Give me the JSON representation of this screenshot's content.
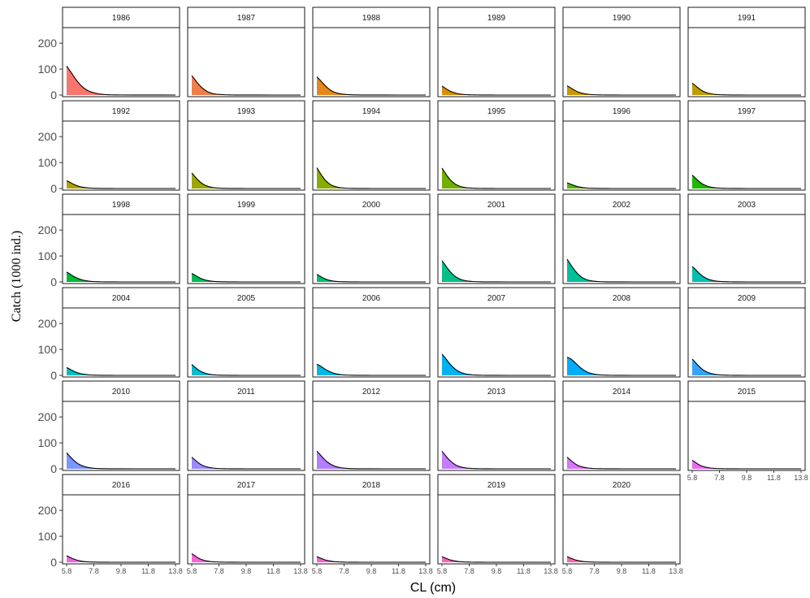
{
  "chart_data": {
    "type": "area",
    "layout": "facet-grid 6 columns, free x labels on bottom row of each column",
    "xlabel": "CL (cm)",
    "ylabel": "Catch (1000 ind.)",
    "xlim": [
      5.8,
      13.8
    ],
    "ylim": [
      0,
      260
    ],
    "x_ticks": [
      "5.8",
      "7.8",
      "9.8",
      "11.8",
      "13.8"
    ],
    "y_ticks": [
      "0",
      "100",
      "200"
    ],
    "grid": false,
    "legend": "none",
    "x": [
      5.8,
      6.0,
      6.2,
      6.4,
      6.6,
      6.8,
      7.0,
      7.2,
      7.4,
      7.6,
      7.8,
      8.0,
      8.2,
      8.4,
      8.6,
      8.8,
      9.0,
      9.4,
      9.8,
      10.8,
      11.8,
      12.8,
      13.8
    ],
    "series": [
      {
        "name": "1986",
        "color": "#F8766D",
        "values": [
          112,
          97,
          82,
          66,
          52,
          40,
          30,
          22,
          16,
          12,
          9,
          6,
          4,
          3,
          2,
          1.5,
          1,
          0.6,
          0.4,
          0.2,
          0.1,
          0.1,
          0
        ]
      },
      {
        "name": "1987",
        "color": "#F07E4A",
        "values": [
          75,
          62,
          48,
          36,
          26,
          18,
          12,
          8,
          5,
          3.5,
          2.5,
          1.8,
          1.2,
          0.8,
          0.6,
          0.4,
          0.3,
          0.2,
          0.1,
          0.1,
          0,
          0,
          0
        ]
      },
      {
        "name": "1988",
        "color": "#E7861A",
        "values": [
          70,
          60,
          48,
          37,
          27,
          19,
          13,
          9,
          6,
          4,
          3,
          2,
          1.4,
          1,
          0.7,
          0.5,
          0.3,
          0.2,
          0.1,
          0.1,
          0,
          0,
          0
        ]
      },
      {
        "name": "1989",
        "color": "#DB8E00",
        "values": [
          35,
          28,
          21,
          15,
          11,
          7.5,
          5,
          3.4,
          2.3,
          1.6,
          1.1,
          0.8,
          0.5,
          0.4,
          0.3,
          0.2,
          0.1,
          0.1,
          0,
          0,
          0,
          0,
          0
        ]
      },
      {
        "name": "1990",
        "color": "#CE9600",
        "values": [
          36,
          30,
          23,
          17,
          12,
          8.5,
          6,
          4,
          2.7,
          1.8,
          1.2,
          0.8,
          0.6,
          0.4,
          0.3,
          0.2,
          0.1,
          0.1,
          0,
          0,
          0,
          0,
          0
        ]
      },
      {
        "name": "1991",
        "color": "#BF9C00",
        "values": [
          46,
          38,
          29,
          21,
          15,
          10,
          7,
          4.7,
          3.1,
          2.1,
          1.4,
          1,
          0.7,
          0.5,
          0.3,
          0.2,
          0.1,
          0.1,
          0,
          0,
          0,
          0,
          0
        ]
      },
      {
        "name": "1992",
        "color": "#AFA200",
        "values": [
          30,
          25,
          19,
          14,
          10,
          7,
          4.8,
          3.2,
          2.1,
          1.4,
          1,
          0.7,
          0.5,
          0.3,
          0.2,
          0.1,
          0.1,
          0,
          0,
          0,
          0,
          0,
          0
        ]
      },
      {
        "name": "1993",
        "color": "#9CA700",
        "values": [
          60,
          48,
          36,
          26,
          18,
          12,
          8,
          5.3,
          3.5,
          2.3,
          1.5,
          1,
          0.7,
          0.5,
          0.3,
          0.2,
          0.1,
          0.1,
          0,
          0,
          0,
          0,
          0
        ]
      },
      {
        "name": "1994",
        "color": "#88AC00",
        "values": [
          80,
          63,
          47,
          33,
          23,
          15,
          10,
          6.5,
          4.2,
          2.7,
          1.8,
          1.2,
          0.8,
          0.5,
          0.3,
          0.2,
          0.1,
          0.1,
          0,
          0,
          0,
          0,
          0
        ]
      },
      {
        "name": "1995",
        "color": "#70B000",
        "values": [
          79,
          63,
          47,
          34,
          24,
          16,
          11,
          7,
          4.6,
          3,
          2,
          1.3,
          0.9,
          0.6,
          0.4,
          0.3,
          0.2,
          0.1,
          0,
          0,
          0,
          0,
          0
        ]
      },
      {
        "name": "1996",
        "color": "#52B400",
        "values": [
          22,
          18,
          14,
          10,
          7,
          5,
          3.4,
          2.3,
          1.5,
          1,
          0.7,
          0.5,
          0.3,
          0.2,
          0.1,
          0.1,
          0,
          0,
          0,
          0,
          0,
          0,
          0
        ]
      },
      {
        "name": "1997",
        "color": "#1DB700",
        "values": [
          52,
          42,
          32,
          23,
          16,
          11,
          7.4,
          5,
          3.3,
          2.2,
          1.4,
          1,
          0.6,
          0.4,
          0.3,
          0.2,
          0.1,
          0.1,
          0,
          0,
          0,
          0,
          0
        ]
      },
      {
        "name": "1998",
        "color": "#00BA38",
        "values": [
          38,
          32,
          25,
          19,
          14,
          10,
          7,
          4.8,
          3.2,
          2.1,
          1.4,
          1,
          0.6,
          0.4,
          0.3,
          0.2,
          0.1,
          0.1,
          0,
          0,
          0,
          0,
          0
        ]
      },
      {
        "name": "1999",
        "color": "#00BC59",
        "values": [
          33,
          27,
          21,
          15,
          11,
          7.5,
          5,
          3.4,
          2.2,
          1.5,
          1,
          0.7,
          0.5,
          0.3,
          0.2,
          0.1,
          0.1,
          0,
          0,
          0,
          0,
          0,
          0
        ]
      },
      {
        "name": "2000",
        "color": "#00BE71",
        "values": [
          30,
          23,
          17,
          12,
          8,
          5.3,
          3.5,
          2.3,
          1.5,
          1,
          0.7,
          0.5,
          0.3,
          0.2,
          0.1,
          0.1,
          0,
          0,
          0,
          0,
          0,
          0,
          0
        ]
      },
      {
        "name": "2001",
        "color": "#00BF87",
        "values": [
          82,
          68,
          53,
          40,
          29,
          20,
          14,
          9.5,
          6.3,
          4.2,
          2.8,
          1.8,
          1.2,
          0.8,
          0.5,
          0.3,
          0.2,
          0.1,
          0.1,
          0,
          0,
          0,
          0
        ]
      },
      {
        "name": "2002",
        "color": "#00C09B",
        "values": [
          88,
          72,
          56,
          42,
          30,
          21,
          14,
          9.5,
          6.3,
          4.2,
          2.8,
          1.8,
          1.2,
          0.8,
          0.5,
          0.3,
          0.2,
          0.1,
          0.1,
          0,
          0,
          0,
          0
        ]
      },
      {
        "name": "2003",
        "color": "#00C0AF",
        "values": [
          60,
          50,
          39,
          29,
          21,
          15,
          10,
          6.8,
          4.5,
          3,
          2,
          1.3,
          0.9,
          0.6,
          0.4,
          0.3,
          0.2,
          0.1,
          0,
          0,
          0,
          0,
          0
        ]
      },
      {
        "name": "2004",
        "color": "#00BFC2",
        "values": [
          30,
          25,
          19,
          14,
          10,
          7,
          4.8,
          3.2,
          2.1,
          1.4,
          1,
          0.7,
          0.5,
          0.3,
          0.2,
          0.1,
          0.1,
          0,
          0,
          0,
          0,
          0,
          0
        ]
      },
      {
        "name": "2005",
        "color": "#00BCD4",
        "values": [
          42,
          33,
          24,
          17,
          12,
          8,
          5.3,
          3.5,
          2.3,
          1.5,
          1,
          0.7,
          0.5,
          0.3,
          0.2,
          0.1,
          0.1,
          0,
          0,
          0,
          0,
          0,
          0
        ]
      },
      {
        "name": "2006",
        "color": "#00B8E5",
        "values": [
          43,
          38,
          31,
          24,
          18,
          13,
          9,
          6,
          4,
          2.7,
          1.8,
          1.2,
          0.8,
          0.5,
          0.3,
          0.2,
          0.1,
          0.1,
          0,
          0,
          0,
          0,
          0
        ]
      },
      {
        "name": "2007",
        "color": "#00B2F3",
        "values": [
          82,
          70,
          56,
          43,
          32,
          23,
          16,
          11,
          7.3,
          4.8,
          3.2,
          2.1,
          1.4,
          0.9,
          0.6,
          0.4,
          0.3,
          0.1,
          0.1,
          0,
          0,
          0,
          0
        ]
      },
      {
        "name": "2008",
        "color": "#00ACFC",
        "values": [
          70,
          66,
          58,
          48,
          38,
          29,
          21,
          15,
          10,
          6.8,
          4.5,
          3,
          2,
          1.3,
          0.9,
          0.6,
          0.4,
          0.2,
          0.1,
          0,
          0,
          0,
          0
        ]
      },
      {
        "name": "2009",
        "color": "#35A2FF",
        "values": [
          63,
          52,
          40,
          30,
          21,
          15,
          10,
          6.8,
          4.5,
          3,
          2,
          1.3,
          0.9,
          0.6,
          0.4,
          0.3,
          0.2,
          0.1,
          0,
          0,
          0,
          0,
          0
        ]
      },
      {
        "name": "2010",
        "color": "#7997FF",
        "values": [
          62,
          50,
          39,
          29,
          21,
          15,
          10.5,
          7.3,
          5,
          3.4,
          2.3,
          1.5,
          1,
          0.7,
          0.5,
          0.3,
          0.2,
          0.1,
          0.1,
          0,
          0,
          0,
          0
        ]
      },
      {
        "name": "2011",
        "color": "#9B8AFF",
        "values": [
          45,
          36,
          27,
          19,
          13,
          9,
          6,
          4,
          2.7,
          1.8,
          1.2,
          0.8,
          0.5,
          0.4,
          0.2,
          0.2,
          0.1,
          0.1,
          0,
          0,
          0,
          0,
          0
        ]
      },
      {
        "name": "2012",
        "color": "#B37EFF",
        "values": [
          68,
          57,
          45,
          34,
          25,
          18,
          12.5,
          8.5,
          5.8,
          3.9,
          2.6,
          1.7,
          1.1,
          0.7,
          0.5,
          0.3,
          0.2,
          0.1,
          0.1,
          0,
          0,
          0,
          0
        ]
      },
      {
        "name": "2013",
        "color": "#C77CFF",
        "values": [
          68,
          55,
          42,
          31,
          22,
          15,
          10,
          6.8,
          4.5,
          3,
          2,
          1.3,
          0.9,
          0.6,
          0.4,
          0.3,
          0.2,
          0.1,
          0,
          0,
          0,
          0,
          0
        ]
      },
      {
        "name": "2014",
        "color": "#D874FD",
        "values": [
          45,
          36,
          27,
          19,
          13,
          9,
          6,
          4,
          2.7,
          1.8,
          1.2,
          0.8,
          0.5,
          0.4,
          0.2,
          0.2,
          0.1,
          0.1,
          0,
          0,
          0,
          0,
          0
        ]
      },
      {
        "name": "2015",
        "color": "#E76BF3",
        "values": [
          33,
          26,
          19,
          13,
          9,
          6,
          4,
          2.7,
          1.8,
          1.2,
          0.8,
          0.5,
          0.4,
          0.2,
          0.2,
          0.1,
          0.1,
          0,
          0,
          0,
          0,
          0,
          0
        ]
      },
      {
        "name": "2016",
        "color": "#F265E7",
        "values": [
          25,
          20,
          15,
          11,
          7.5,
          5,
          3.4,
          2.3,
          1.5,
          1,
          0.7,
          0.5,
          0.3,
          0.2,
          0.1,
          0.1,
          0,
          0,
          0,
          0,
          0,
          0,
          0
        ]
      },
      {
        "name": "2017",
        "color": "#FA62DB",
        "values": [
          33,
          26,
          19,
          13,
          9,
          6,
          4,
          2.7,
          1.8,
          1.2,
          0.8,
          0.5,
          0.4,
          0.2,
          0.2,
          0.1,
          0.1,
          0,
          0,
          0,
          0,
          0,
          0
        ]
      },
      {
        "name": "2018",
        "color": "#FE61CF",
        "values": [
          22,
          17,
          13,
          9,
          6.5,
          4.5,
          3,
          2,
          1.3,
          0.9,
          0.6,
          0.4,
          0.3,
          0.2,
          0.1,
          0.1,
          0,
          0,
          0,
          0,
          0,
          0,
          0
        ]
      },
      {
        "name": "2019",
        "color": "#FF62BC",
        "values": [
          22,
          17,
          13,
          9,
          6.5,
          4.5,
          3,
          2,
          1.3,
          0.9,
          0.6,
          0.4,
          0.3,
          0.2,
          0.1,
          0.1,
          0,
          0,
          0,
          0,
          0,
          0,
          0
        ]
      },
      {
        "name": "2020",
        "color": "#FF65AE",
        "values": [
          22,
          17,
          13,
          9,
          6.5,
          4.5,
          3,
          2,
          1.3,
          0.9,
          0.6,
          0.4,
          0.3,
          0.2,
          0.1,
          0.1,
          0,
          0,
          0,
          0,
          0,
          0,
          0
        ]
      }
    ]
  }
}
